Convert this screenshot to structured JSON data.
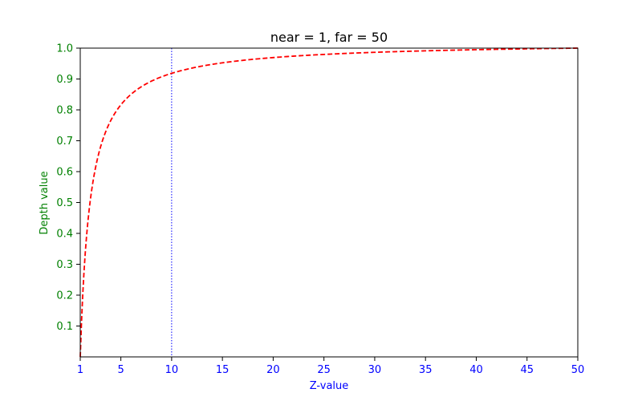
{
  "chart_data": {
    "type": "line",
    "title": "near = 1, far = 50",
    "xlabel": "Z-value",
    "ylabel": "Depth value",
    "xlim": [
      1,
      50
    ],
    "ylim": [
      0,
      1.0
    ],
    "x_ticks": [
      1,
      5,
      10,
      15,
      20,
      25,
      30,
      35,
      40,
      45,
      50
    ],
    "y_ticks": [
      0.1,
      0.2,
      0.3,
      0.4,
      0.5,
      0.6,
      0.7,
      0.8,
      0.9,
      1.0
    ],
    "x_tick_color": "#0000ff",
    "y_tick_color": "#008000",
    "xlabel_color": "#0000ff",
    "ylabel_color": "#008000",
    "grid": false,
    "near": 1,
    "far": 50,
    "series": [
      {
        "color": "#ff0000",
        "style": "dashed",
        "x": [
          1,
          1.25,
          1.5,
          2,
          2.5,
          3,
          4,
          5,
          6,
          8,
          10,
          12,
          15,
          20,
          25,
          30,
          35,
          40,
          45,
          50
        ],
        "values": [
          0,
          0.2041,
          0.3401,
          0.5102,
          0.6122,
          0.6803,
          0.7653,
          0.8163,
          0.8503,
          0.8929,
          0.9184,
          0.9354,
          0.9524,
          0.9694,
          0.9796,
          0.9864,
          0.9913,
          0.9949,
          0.9977,
          1.0
        ]
      }
    ],
    "reference_lines": [
      {
        "x": 10,
        "color": "#0000ff",
        "style": "dotted"
      }
    ]
  }
}
